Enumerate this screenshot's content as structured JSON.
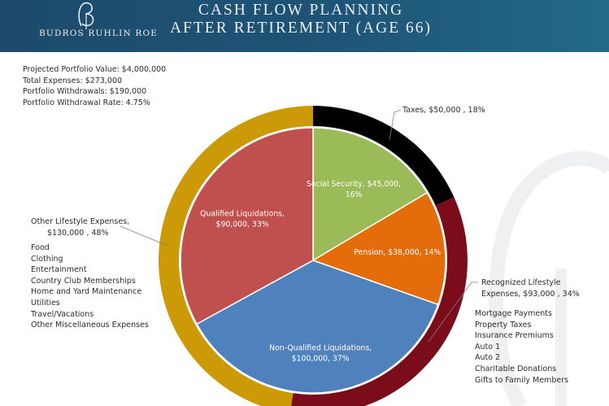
{
  "header": {
    "brand": "BUDROS RUHLIN ROE",
    "title_line1": "CASH FLOW PLANNING",
    "title_line2": "AFTER RETIREMENT (AGE 66)"
  },
  "summary": [
    "Projected Portfolio Value: $4,000,000",
    "Total Expenses: $273,000",
    "Portfolio Withdrawals: $190,000",
    "Portfolio Withdrawal Rate: 4.75%"
  ],
  "colors": {
    "header": "#1e5477",
    "social_security": "#9bbb59",
    "pension": "#e46c0a",
    "non_qualified": "#4f81bd",
    "qualified": "#c0504d",
    "taxes": "#000000",
    "recognized": "#7b0c1a",
    "other_lifestyle": "#cc9a06"
  },
  "chart_data": [
    {
      "type": "pie",
      "name": "income_sources",
      "slices": [
        {
          "label": "Social Security, $45,000, 16%",
          "line1": "Social Security, $45,000,",
          "line2": "16%",
          "value": 45000,
          "percent": 16,
          "color": "#9bbb59"
        },
        {
          "label": "Pension, $38,000, 14%",
          "line1": "Pension, $38,000, 14%",
          "line2": "",
          "value": 38000,
          "percent": 14,
          "color": "#e46c0a"
        },
        {
          "label": "Non-Qualified Liquidations, $100,000, 37%",
          "line1": "Non-Qualified Liquidations,",
          "line2": "$100,000, 37%",
          "value": 100000,
          "percent": 37,
          "color": "#4f81bd"
        },
        {
          "label": "Qualified Liquidations, $90,000, 33%",
          "line1": "Qualified Liquidations,",
          "line2": "$90,000, 33%",
          "value": 90000,
          "percent": 33,
          "color": "#c0504d"
        }
      ]
    },
    {
      "type": "pie",
      "name": "expenses_ring",
      "slices": [
        {
          "label": "Taxes, $50,000 , 18%",
          "value": 50000,
          "percent": 18,
          "color": "#000000"
        },
        {
          "label": "Recognized Lifestyle Expenses, $93,000 , 34%",
          "value": 93000,
          "percent": 34,
          "color": "#7b0c1a"
        },
        {
          "label": "Other Lifestyle Expenses, $130,000 , 48%",
          "value": 130000,
          "percent": 48,
          "color": "#cc9a06"
        }
      ]
    }
  ],
  "callouts": {
    "taxes": "Taxes,  $50,000 , 18%",
    "other_line1": "Other Lifestyle Expenses,",
    "other_line2": "$130,000 , 48%",
    "recog_line1": "Recognized Lifestyle",
    "recog_line2": "Expenses, $93,000 , 34%"
  },
  "other_lifestyle_items": [
    "Food",
    "Clothing",
    "Entertainment",
    "Country Club Memberships",
    "Home and Yard Maintenance",
    "Utilities",
    "Travel/Vacations",
    "Other Miscellaneous Expenses"
  ],
  "recognized_items": [
    "Mortgage Payments",
    "Property Taxes",
    "Insurance Premiums",
    "Auto 1",
    "Auto 2",
    "Charitable Donations",
    "Gifts to Family Members"
  ]
}
